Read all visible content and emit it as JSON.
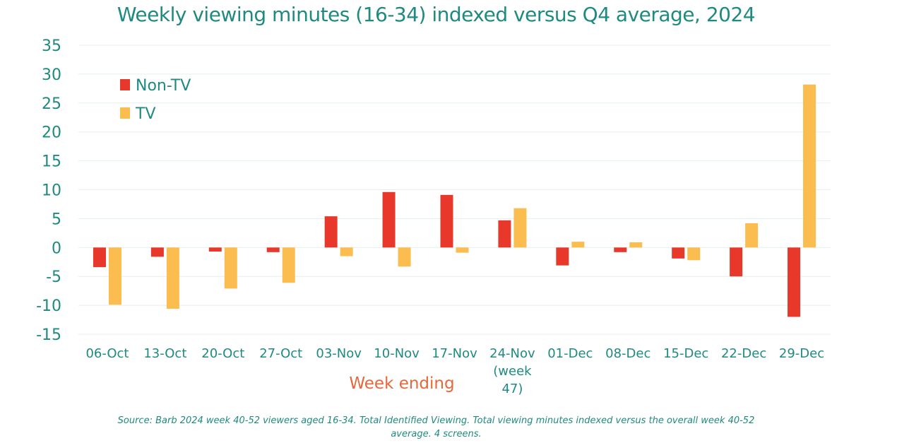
{
  "chart_data": {
    "type": "bar",
    "title": "Weekly viewing minutes (16-34) indexed versus Q4 average, 2024",
    "xlabel": "Week ending",
    "ylabel": "",
    "ylim": [
      -15,
      35
    ],
    "yticks": [
      35,
      30,
      25,
      20,
      15,
      10,
      5,
      0,
      -5,
      -10,
      -15
    ],
    "categories": [
      "06-Oct",
      "13-Oct",
      "20-Oct",
      "27-Oct",
      "03-Nov",
      "10-Nov",
      "17-Nov",
      "24-Nov (week 47)",
      "01-Dec",
      "08-Dec",
      "15-Dec",
      "22-Dec",
      "29-Dec"
    ],
    "series": [
      {
        "name": "Non-TV",
        "color": "#e8382b",
        "values": [
          -3.4,
          -1.6,
          -0.7,
          -0.8,
          5.4,
          9.6,
          9.1,
          4.7,
          -3.1,
          -0.8,
          -1.9,
          -5.0,
          -12.0
        ]
      },
      {
        "name": "TV",
        "color": "#fbbd4f",
        "values": [
          -9.9,
          -10.6,
          -7.1,
          -6.1,
          -1.5,
          -3.3,
          -0.9,
          6.8,
          1.0,
          0.9,
          -2.2,
          4.2,
          28.2
        ]
      }
    ],
    "grid": true,
    "legend_position": "top-left"
  },
  "colors": {
    "title": "#1f8a80",
    "axis_text": "#1f8a80",
    "xlabel": "#e8673a",
    "gridline": "#e3f0ee"
  },
  "source_note": "Source: Barb 2024 week 40-52 viewers aged 16-34. Total Identified Viewing. Total viewing minutes indexed versus the overall week 40-52 average. 4 screens."
}
